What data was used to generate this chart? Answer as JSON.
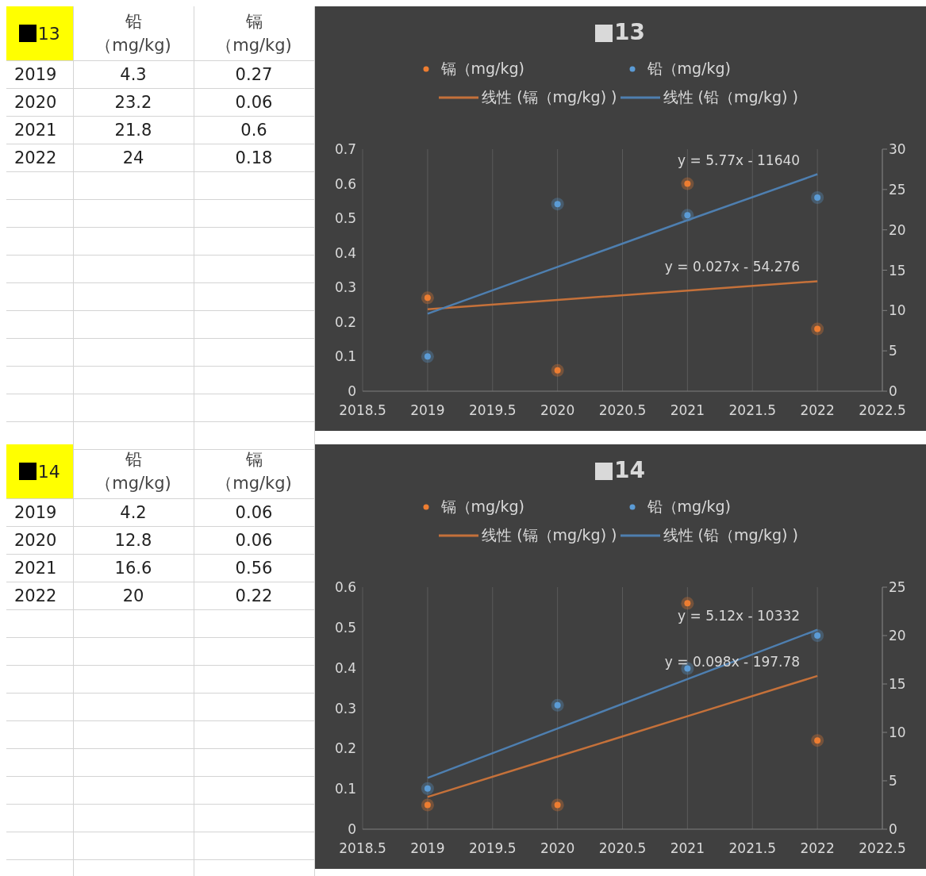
{
  "chart_data": [
    {
      "type": "heatmap",
      "title": "13",
      "categories": [
        "铅（mg/kg)",
        "镉（mg/kg)"
      ],
      "y_categories": [
        "2019",
        "2020",
        "2021",
        "2022"
      ],
      "cells": [
        [
          4.3,
          0.27
        ],
        [
          23.2,
          0.06
        ],
        [
          21.8,
          0.6
        ],
        [
          24,
          0.18
        ]
      ],
      "data_labels": true
    },
    {
      "type": "scatter",
      "title": "13",
      "x": [
        2019,
        2020,
        2021,
        2022
      ],
      "xlim": [
        2018.5,
        2022.5
      ],
      "xticks": [
        2018.5,
        2019,
        2019.5,
        2020,
        2020.5,
        2021,
        2021.5,
        2022,
        2022.5
      ],
      "ylim": [
        0,
        0.7
      ],
      "yticks": [
        0,
        0.1,
        0.2,
        0.3,
        0.4,
        0.5,
        0.6,
        0.7
      ],
      "y2lim": [
        0,
        30
      ],
      "y2ticks": [
        0,
        5,
        10,
        15,
        20,
        25,
        30
      ],
      "grid": "x",
      "legend": "top",
      "marker": "circle",
      "series": [
        {
          "name": "镉（mg/kg)",
          "color": "#ed7d31",
          "values": [
            0.27,
            0.06,
            0.6,
            0.18
          ]
        },
        {
          "name": "铅（mg/kg)",
          "color": "#5b9bd5",
          "axis": "y2",
          "values": [
            4.3,
            23.2,
            21.8,
            24
          ]
        },
        {
          "name": "线性 (镉（mg/kg) )",
          "type": "line",
          "marker": "none",
          "line_style": "solid",
          "color": "#c5713a",
          "values": [
            0.237,
            0.264,
            0.291,
            0.318
          ]
        },
        {
          "name": "线性 (铅（mg/kg) )",
          "type": "line",
          "marker": "none",
          "line_style": "solid",
          "color": "#4e7fb0",
          "axis": "y2",
          "values": [
            9.6,
            15.4,
            21.2,
            26.9
          ]
        }
      ],
      "annotations": [
        "y = 5.77x - 11640",
        "y = 0.027x - 54.276"
      ]
    },
    {
      "type": "heatmap",
      "title": "14",
      "categories": [
        "铅（mg/kg)",
        "镉（mg/kg)"
      ],
      "y_categories": [
        "2019",
        "2020",
        "2021",
        "2022"
      ],
      "cells": [
        [
          4.2,
          0.06
        ],
        [
          12.8,
          0.06
        ],
        [
          16.6,
          0.56
        ],
        [
          20,
          0.22
        ]
      ],
      "data_labels": true
    },
    {
      "type": "scatter",
      "title": "14",
      "x": [
        2019,
        2020,
        2021,
        2022
      ],
      "xlim": [
        2018.5,
        2022.5
      ],
      "xticks": [
        2018.5,
        2019,
        2019.5,
        2020,
        2020.5,
        2021,
        2021.5,
        2022,
        2022.5
      ],
      "ylim": [
        0,
        0.6
      ],
      "yticks": [
        0,
        0.1,
        0.2,
        0.3,
        0.4,
        0.5,
        0.6
      ],
      "y2lim": [
        0,
        25
      ],
      "y2ticks": [
        0,
        5,
        10,
        15,
        20,
        25
      ],
      "grid": "x",
      "legend": "top",
      "marker": "circle",
      "series": [
        {
          "name": "镉（mg/kg)",
          "color": "#ed7d31",
          "values": [
            0.06,
            0.06,
            0.56,
            0.22
          ]
        },
        {
          "name": "铅（mg/kg)",
          "color": "#5b9bd5",
          "axis": "y2",
          "values": [
            4.2,
            12.8,
            16.6,
            20
          ]
        },
        {
          "name": "线性 (镉（mg/kg) )",
          "type": "line",
          "marker": "none",
          "line_style": "solid",
          "color": "#c5713a",
          "values": [
            0.08,
            0.18,
            0.28,
            0.38
          ]
        },
        {
          "name": "线性 (铅（mg/kg) )",
          "type": "line",
          "marker": "none",
          "line_style": "solid",
          "color": "#4e7fb0",
          "axis": "y2",
          "values": [
            5.3,
            10.4,
            15.5,
            20.6
          ]
        }
      ],
      "annotations": [
        "y = 5.12x - 10332",
        "y = 0.098x - 197.78"
      ]
    }
  ]
}
